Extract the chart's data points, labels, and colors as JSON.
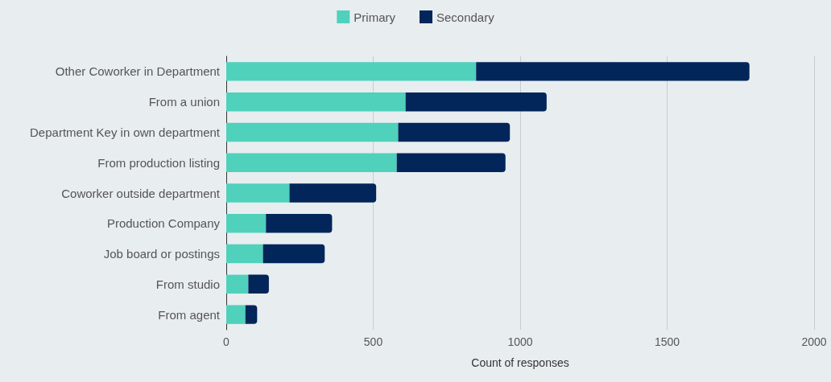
{
  "chart_data": {
    "type": "bar",
    "orientation": "horizontal",
    "stacked": true,
    "xlabel": "Count of responses",
    "categories": [
      "Other Coworker in Department",
      "From a union",
      "Department Key in own department",
      "From production listing",
      "Coworker outside department",
      "Production Company",
      "Job board or postings",
      "From studio",
      "From agent"
    ],
    "series": [
      {
        "name": "Primary",
        "color": "#4fd1bb",
        "values": [
          850,
          610,
          585,
          580,
          215,
          135,
          125,
          75,
          65
        ]
      },
      {
        "name": "Secondary",
        "color": "#022659",
        "values": [
          930,
          480,
          380,
          370,
          295,
          225,
          210,
          70,
          40
        ]
      }
    ],
    "xlim": [
      0,
      2000
    ],
    "xticks": [
      0,
      500,
      1000,
      1500,
      2000
    ],
    "grid": "x",
    "legend": "top"
  }
}
